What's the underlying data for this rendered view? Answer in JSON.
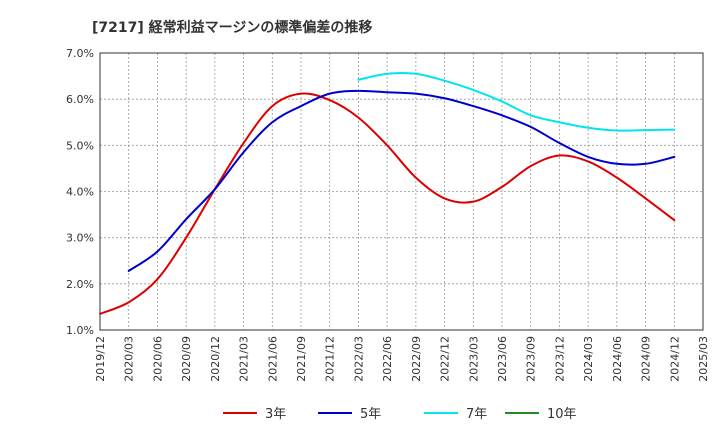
{
  "chart_data": {
    "type": "line",
    "title": "[7217]  経常利益マージンの標準偏差の推移",
    "xlabel": "",
    "ylabel": "",
    "x_ticks": [
      "2019/12",
      "2020/03",
      "2020/06",
      "2020/09",
      "2020/12",
      "2021/03",
      "2021/06",
      "2021/09",
      "2021/12",
      "2022/03",
      "2022/06",
      "2022/09",
      "2022/12",
      "2023/03",
      "2023/06",
      "2023/09",
      "2023/12",
      "2024/03",
      "2024/06",
      "2024/09",
      "2024/12",
      "2025/03"
    ],
    "y_ticks": [
      "1.0%",
      "2.0%",
      "3.0%",
      "4.0%",
      "5.0%",
      "6.0%",
      "7.0%"
    ],
    "ylim": [
      1.0,
      7.0
    ],
    "grid": true,
    "legend_position": "bottom",
    "series": [
      {
        "name": "3年",
        "color": "#dd0000",
        "points": [
          [
            "2019/12",
            1.35
          ],
          [
            "2020/03",
            1.6
          ],
          [
            "2020/06",
            2.1
          ],
          [
            "2020/09",
            3.0
          ],
          [
            "2020/12",
            4.05
          ],
          [
            "2021/03",
            5.05
          ],
          [
            "2021/06",
            5.85
          ],
          [
            "2021/09",
            6.12
          ],
          [
            "2021/12",
            5.98
          ],
          [
            "2022/03",
            5.6
          ],
          [
            "2022/06",
            5.0
          ],
          [
            "2022/09",
            4.3
          ],
          [
            "2022/12",
            3.85
          ],
          [
            "2023/03",
            3.78
          ],
          [
            "2023/06",
            4.1
          ],
          [
            "2023/09",
            4.55
          ],
          [
            "2023/12",
            4.78
          ],
          [
            "2024/03",
            4.65
          ],
          [
            "2024/06",
            4.3
          ],
          [
            "2024/09",
            3.85
          ],
          [
            "2024/12",
            3.38
          ]
        ]
      },
      {
        "name": "5年",
        "color": "#0000cc",
        "points": [
          [
            "2020/03",
            2.28
          ],
          [
            "2020/06",
            2.7
          ],
          [
            "2020/09",
            3.4
          ],
          [
            "2020/12",
            4.05
          ],
          [
            "2021/03",
            4.85
          ],
          [
            "2021/06",
            5.5
          ],
          [
            "2021/09",
            5.85
          ],
          [
            "2021/12",
            6.12
          ],
          [
            "2022/03",
            6.18
          ],
          [
            "2022/06",
            6.15
          ],
          [
            "2022/09",
            6.12
          ],
          [
            "2022/12",
            6.02
          ],
          [
            "2023/03",
            5.85
          ],
          [
            "2023/06",
            5.65
          ],
          [
            "2023/09",
            5.4
          ],
          [
            "2023/12",
            5.05
          ],
          [
            "2024/03",
            4.75
          ],
          [
            "2024/06",
            4.6
          ],
          [
            "2024/09",
            4.6
          ],
          [
            "2024/12",
            4.75
          ]
        ]
      },
      {
        "name": "7年",
        "color": "#00e5ee",
        "points": [
          [
            "2022/03",
            6.42
          ],
          [
            "2022/06",
            6.55
          ],
          [
            "2022/09",
            6.55
          ],
          [
            "2022/12",
            6.4
          ],
          [
            "2023/03",
            6.2
          ],
          [
            "2023/06",
            5.95
          ],
          [
            "2023/09",
            5.65
          ],
          [
            "2023/12",
            5.5
          ],
          [
            "2024/03",
            5.38
          ],
          [
            "2024/06",
            5.32
          ],
          [
            "2024/09",
            5.33
          ],
          [
            "2024/12",
            5.34
          ]
        ]
      },
      {
        "name": "10年",
        "color": "#228b22",
        "points": []
      }
    ]
  }
}
